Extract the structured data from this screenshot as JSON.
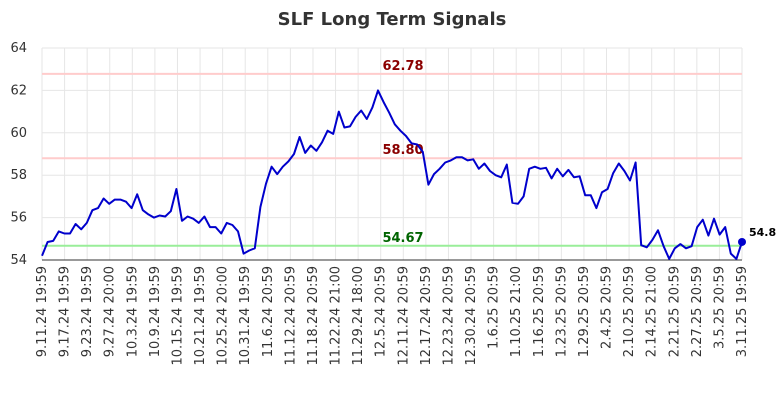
{
  "chart_data": {
    "type": "line",
    "title": "SLF Long Term Signals",
    "xlabel": "",
    "ylabel": "",
    "ylim": [
      54,
      64
    ],
    "yticks": [
      "54",
      "56",
      "58",
      "60",
      "62",
      "64"
    ],
    "grid": true,
    "x_tick_labels": [
      "9.11.24 19:59",
      "9.17.24 19:59",
      "9.23.24 19:59",
      "9.27.24 20:00",
      "10.3.24 19:59",
      "10.9.24 19:59",
      "10.15.24 19:59",
      "10.21.24 19:59",
      "10.25.24 20:00",
      "10.31.24 19:59",
      "11.6.24 20:59",
      "11.12.24 20:59",
      "11.18.24 20:59",
      "11.22.24 21:00",
      "11.29.24 18:00",
      "12.5.24 20:59",
      "12.11.24 20:59",
      "12.17.24 20:59",
      "12.23.24 20:59",
      "12.30.24 20:59",
      "1.6.25 20:59",
      "1.10.25 21:00",
      "1.16.25 20:59",
      "1.23.25 20:59",
      "1.29.25 20:59",
      "2.4.25 20:59",
      "2.10.25 20:59",
      "2.14.25 21:00",
      "2.21.25 20:59",
      "2.27.25 20:59",
      "3.5.25 20:59",
      "3.11.25 19:59"
    ],
    "series": [
      {
        "color": "#0000cc",
        "values": [
          54.2,
          54.85,
          54.9,
          55.35,
          55.25,
          55.25,
          55.7,
          55.45,
          55.75,
          56.35,
          56.45,
          56.9,
          56.65,
          56.85,
          56.85,
          56.75,
          56.45,
          57.1,
          56.35,
          56.15,
          56.0,
          56.1,
          56.05,
          56.3,
          57.35,
          55.85,
          56.05,
          55.95,
          55.75,
          56.05,
          55.55,
          55.55,
          55.25,
          55.75,
          55.65,
          55.35,
          54.3,
          54.45,
          54.55,
          56.5,
          57.6,
          58.4,
          58.05,
          58.4,
          58.65,
          59.0,
          59.8,
          59.05,
          59.4,
          59.15,
          59.55,
          60.1,
          59.95,
          61.0,
          60.25,
          60.3,
          60.75,
          61.05,
          60.65,
          61.2,
          62.0,
          61.45,
          60.95,
          60.4,
          60.1,
          59.85,
          59.5,
          59.45,
          59.1,
          57.55,
          58.05,
          58.3,
          58.6,
          58.7,
          58.85,
          58.85,
          58.7,
          58.75,
          58.3,
          58.55,
          58.2,
          58.0,
          57.9,
          58.5,
          56.7,
          56.65,
          57.0,
          58.3,
          58.4,
          58.3,
          58.35,
          57.85,
          58.3,
          57.95,
          58.25,
          57.9,
          57.95,
          57.05,
          57.05,
          56.45,
          57.2,
          57.35,
          58.1,
          58.55,
          58.2,
          57.75,
          58.6,
          54.7,
          54.6,
          54.95,
          55.4,
          54.65,
          54.05,
          54.55,
          54.75,
          54.55,
          54.65,
          55.55,
          55.9,
          55.15,
          55.95,
          55.2,
          55.55,
          54.3,
          54.05,
          54.85
        ]
      }
    ],
    "reference_lines": [
      {
        "value": 62.78,
        "label": "62.78",
        "line_color": "#ffcccc",
        "label_color": "#8b0000"
      },
      {
        "value": 58.8,
        "label": "58.80",
        "line_color": "#ffcccc",
        "label_color": "#8b0000"
      },
      {
        "value": 54.67,
        "label": "54.67",
        "line_color": "#99ee99",
        "label_color": "#006400"
      }
    ],
    "last_value_label": "54.8"
  }
}
